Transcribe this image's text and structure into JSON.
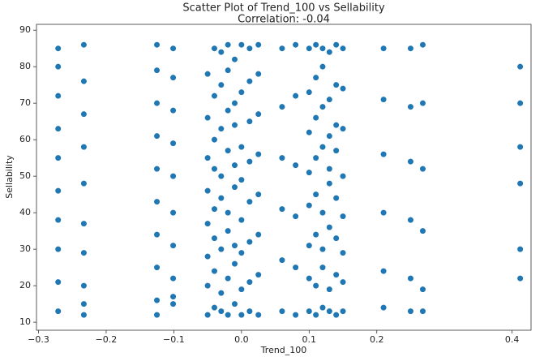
{
  "chart_data": {
    "type": "scatter",
    "title": "Scatter Plot of Trend_100 vs Sellability",
    "subtitle": "Correlation: -0.04",
    "x_label": "Trend_100",
    "y_label": "Sellability",
    "color": "#1f77b4",
    "xlim": [
      -0.303,
      0.428
    ],
    "ylim": [
      7.8,
      91.6
    ],
    "xticks": [
      {
        "value": -0.3,
        "label": "−0.3"
      },
      {
        "value": -0.2,
        "label": "−0.2"
      },
      {
        "value": -0.1,
        "label": "−0.1"
      },
      {
        "value": 0.0,
        "label": "0.0"
      },
      {
        "value": 0.1,
        "label": "0.1"
      },
      {
        "value": 0.2,
        "label": "0.2"
      },
      {
        "value": 0.4,
        "label": "0.4"
      }
    ],
    "yticks": [
      10,
      20,
      30,
      40,
      50,
      60,
      70,
      80,
      90
    ],
    "columns": [
      {
        "x": -0.271,
        "y": [
          13,
          21,
          30,
          38,
          46,
          55,
          63,
          72,
          80,
          85
        ]
      },
      {
        "x": -0.233,
        "y": [
          12,
          15,
          20,
          29,
          37,
          48,
          58,
          67,
          76,
          86
        ]
      },
      {
        "x": -0.125,
        "y": [
          12,
          16,
          25,
          34,
          43,
          52,
          61,
          70,
          79,
          86
        ]
      },
      {
        "x": -0.101,
        "y": [
          15,
          17,
          22,
          31,
          40,
          50,
          59,
          68,
          77,
          85
        ]
      },
      {
        "x": -0.05,
        "y": [
          12,
          20,
          28,
          37,
          46,
          55,
          66,
          78
        ]
      },
      {
        "x": -0.04,
        "y": [
          14,
          24,
          33,
          41,
          52,
          60,
          72,
          85
        ]
      },
      {
        "x": -0.03,
        "y": [
          13,
          18,
          30,
          44,
          50,
          63,
          75,
          84
        ]
      },
      {
        "x": -0.02,
        "y": [
          12,
          22,
          35,
          40,
          57,
          68,
          79,
          86
        ]
      },
      {
        "x": -0.01,
        "y": [
          15,
          26,
          31,
          47,
          53,
          64,
          70,
          82
        ]
      },
      {
        "x": 0.0,
        "y": [
          12,
          19,
          29,
          38,
          49,
          58,
          73,
          86
        ]
      },
      {
        "x": 0.012,
        "y": [
          13,
          21,
          32,
          43,
          54,
          65,
          76,
          85
        ]
      },
      {
        "x": 0.025,
        "y": [
          12,
          23,
          34,
          45,
          56,
          67,
          78,
          86
        ]
      },
      {
        "x": 0.06,
        "y": [
          13,
          27,
          41,
          55,
          69,
          85
        ]
      },
      {
        "x": 0.08,
        "y": [
          12,
          25,
          39,
          53,
          72,
          86
        ]
      },
      {
        "x": 0.1,
        "y": [
          13,
          22,
          31,
          42,
          51,
          62,
          73,
          85
        ]
      },
      {
        "x": 0.11,
        "y": [
          12,
          20,
          34,
          45,
          55,
          66,
          77,
          86
        ]
      },
      {
        "x": 0.12,
        "y": [
          14,
          25,
          30,
          40,
          58,
          69,
          80,
          85
        ]
      },
      {
        "x": 0.13,
        "y": [
          13,
          19,
          36,
          48,
          52,
          61,
          71,
          84
        ]
      },
      {
        "x": 0.14,
        "y": [
          12,
          23,
          33,
          44,
          57,
          64,
          75,
          86
        ]
      },
      {
        "x": 0.15,
        "y": [
          13,
          21,
          29,
          39,
          50,
          63,
          74,
          85
        ]
      },
      {
        "x": 0.21,
        "y": [
          14,
          24,
          40,
          56,
          71,
          85
        ]
      },
      {
        "x": 0.25,
        "y": [
          13,
          22,
          38,
          54,
          69,
          85
        ]
      },
      {
        "x": 0.268,
        "y": [
          13,
          19,
          35,
          52,
          70,
          86
        ]
      },
      {
        "x": 0.412,
        "y": [
          22,
          30,
          48,
          58,
          70,
          80
        ]
      }
    ]
  }
}
